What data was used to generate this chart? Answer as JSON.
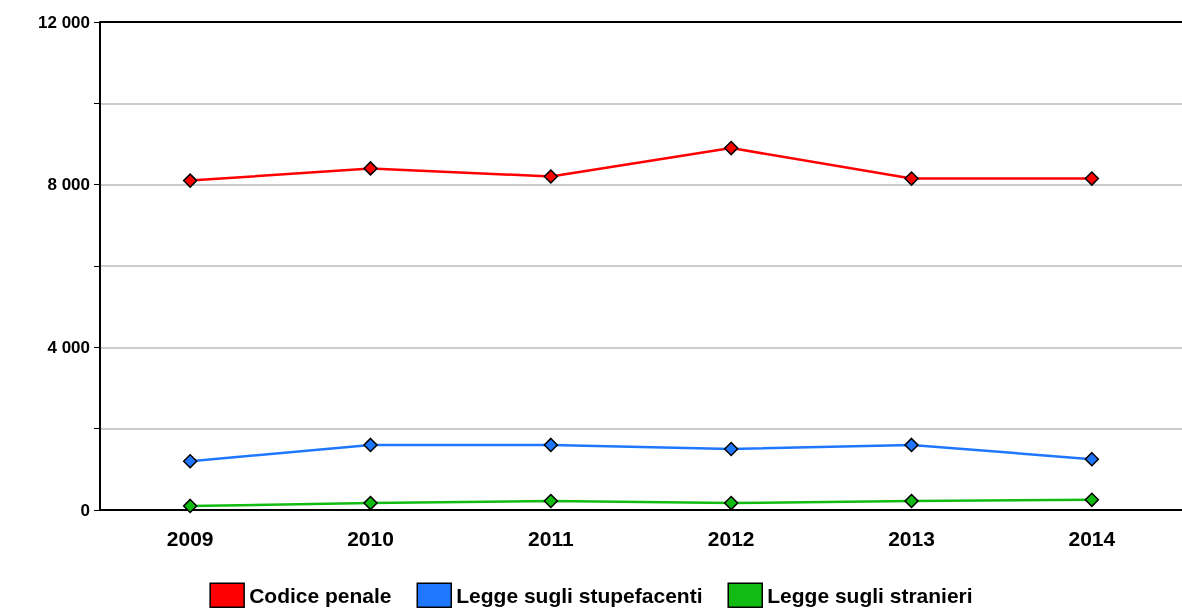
{
  "chart_data": {
    "type": "line",
    "categories": [
      "2009",
      "2010",
      "2011",
      "2012",
      "2013",
      "2014"
    ],
    "series": [
      {
        "name": "Codice penale",
        "color": "#ff0000",
        "values": [
          8100,
          8400,
          8200,
          8900,
          8150,
          8150
        ]
      },
      {
        "name": "Legge sugli stupefacenti",
        "color": "#1f77ff",
        "values": [
          1200,
          1600,
          1600,
          1500,
          1600,
          1250
        ]
      },
      {
        "name": "Legge sugli stranieri",
        "color": "#11bb11",
        "values": [
          100,
          170,
          220,
          170,
          220,
          250
        ]
      }
    ],
    "ylim": [
      0,
      12000
    ],
    "yticks": [
      {
        "value": 0,
        "label": "0"
      },
      {
        "value": 2000,
        "label": null
      },
      {
        "value": 4000,
        "label": "4 000"
      },
      {
        "value": 6000,
        "label": null
      },
      {
        "value": 8000,
        "label": "8 000"
      },
      {
        "value": 10000,
        "label": null
      },
      {
        "value": 12000,
        "label": "12 000"
      }
    ],
    "grid": "y",
    "legend": "bottom",
    "marker": "diamond",
    "line_style": "solid"
  }
}
